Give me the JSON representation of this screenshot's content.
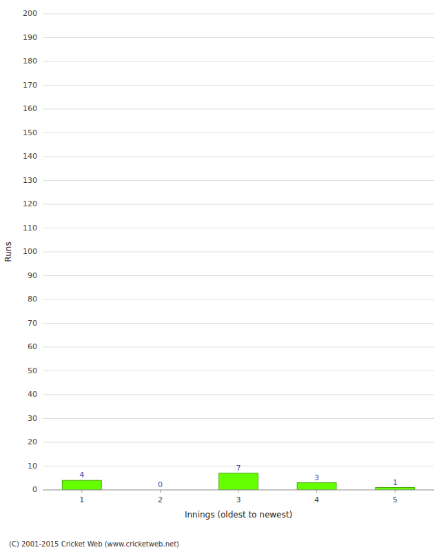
{
  "chart_data": {
    "type": "bar",
    "categories": [
      "1",
      "2",
      "3",
      "4",
      "5"
    ],
    "values": [
      4,
      0,
      7,
      3,
      1
    ],
    "color": "#66ff00",
    "x_label": "Innings (oldest to newest)",
    "y_label": "Runs",
    "ylim": [
      0,
      200
    ],
    "yticks": [
      0,
      10,
      20,
      30,
      40,
      50,
      60,
      70,
      80,
      90,
      100,
      110,
      120,
      130,
      140,
      150,
      160,
      170,
      180,
      190,
      200
    ],
    "grid": true,
    "data_labels": true,
    "annotations": [
      "(C) 2001-2015 Cricket Web (www.cricketweb.net)"
    ]
  }
}
